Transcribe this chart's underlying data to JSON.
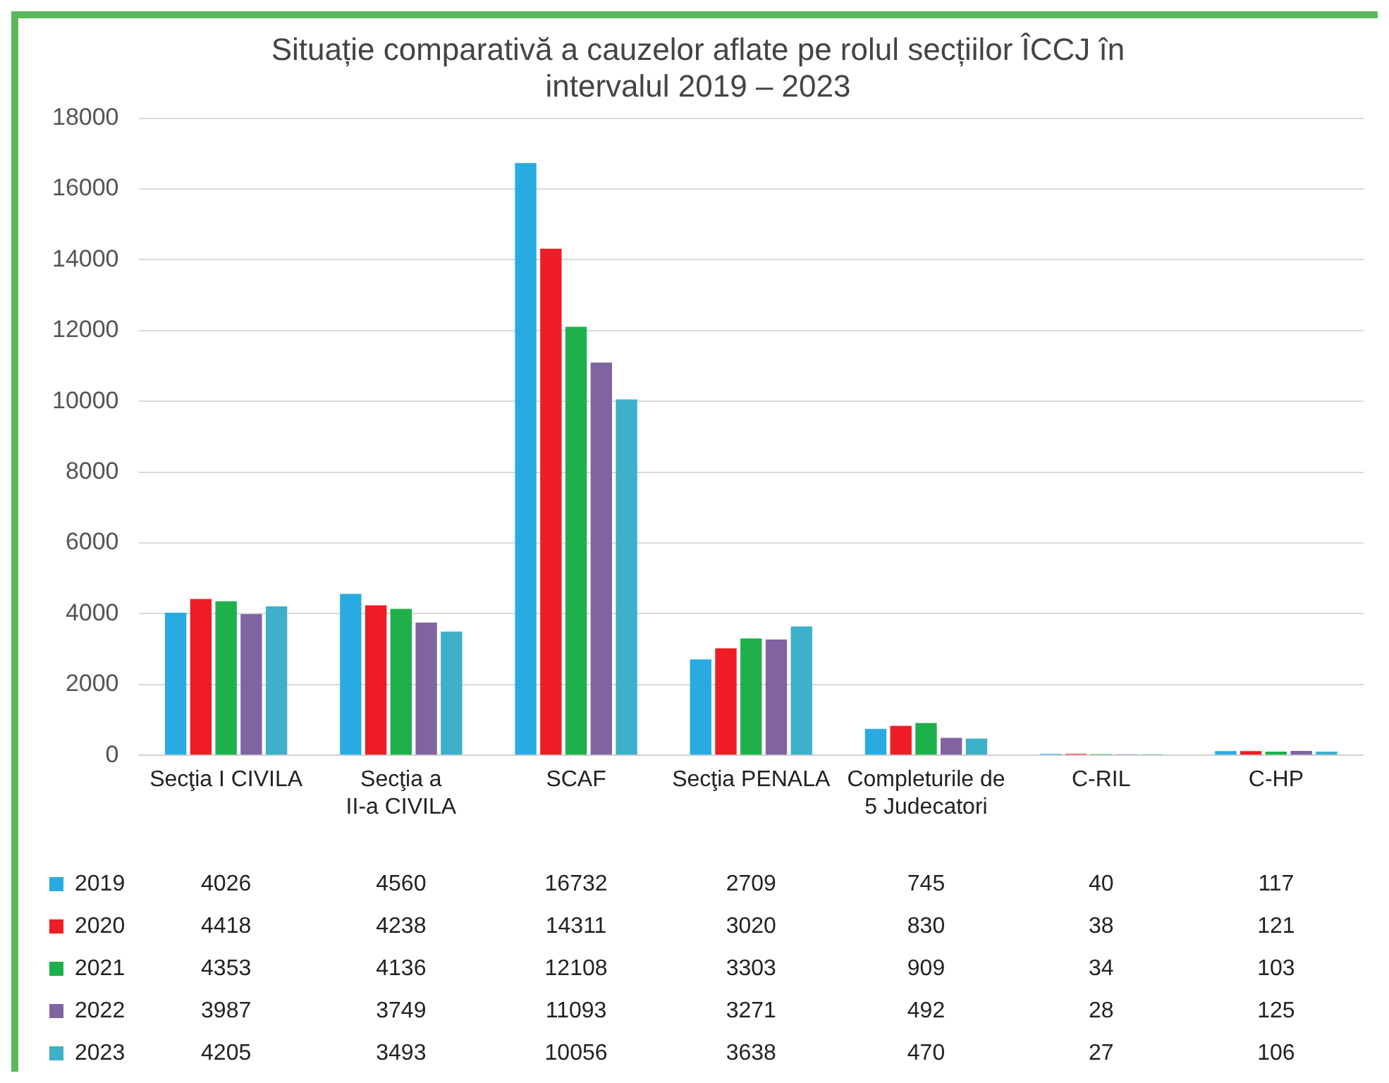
{
  "chart_data": {
    "type": "bar",
    "title": "Situație comparativă a cauzelor aflate pe rolul secțiilor ÎCCJ în intervalul 2019 – 2023",
    "categories": [
      "Secţia I CIVILA",
      "Secţia a II-a CIVILA",
      "SCAF",
      "Secţia PENALA",
      "Completurile de 5 Judecatori",
      "C-RIL",
      "C-HP"
    ],
    "series": [
      {
        "name": "2019",
        "color": "#29abe2",
        "values": [
          4026,
          4560,
          16732,
          2709,
          745,
          40,
          117
        ]
      },
      {
        "name": "2020",
        "color": "#ee1c25",
        "values": [
          4418,
          4238,
          14311,
          3020,
          830,
          38,
          121
        ]
      },
      {
        "name": "2021",
        "color": "#1db04b",
        "values": [
          4353,
          4136,
          12108,
          3303,
          909,
          34,
          103
        ]
      },
      {
        "name": "2022",
        "color": "#8064a2",
        "values": [
          3987,
          3749,
          11093,
          3271,
          492,
          28,
          125
        ]
      },
      {
        "name": "2023",
        "color": "#3fb0c9",
        "values": [
          4205,
          3493,
          10056,
          3638,
          470,
          27,
          106
        ]
      }
    ],
    "ylim": [
      0,
      18000
    ],
    "yticks": [
      0,
      2000,
      4000,
      6000,
      8000,
      10000,
      12000,
      14000,
      16000,
      18000
    ],
    "grid": "y",
    "legend": "bottom",
    "data_labels": true
  }
}
